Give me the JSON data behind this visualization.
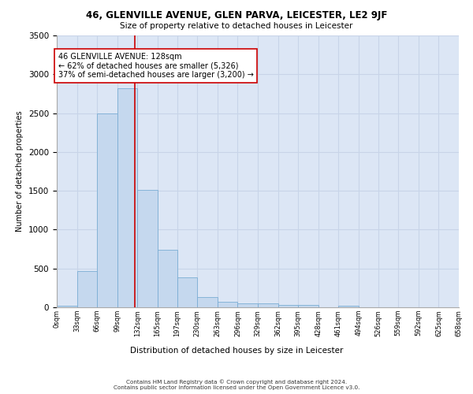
{
  "title": "46, GLENVILLE AVENUE, GLEN PARVA, LEICESTER, LE2 9JF",
  "subtitle": "Size of property relative to detached houses in Leicester",
  "xlabel": "Distribution of detached houses by size in Leicester",
  "ylabel": "Number of detached properties",
  "bar_color": "#c5d8ee",
  "bar_edge_color": "#7aadd4",
  "grid_color": "#c8d4e8",
  "background_color": "#dce6f5",
  "vline_x": 128,
  "vline_color": "#cc0000",
  "annotation_text": "46 GLENVILLE AVENUE: 128sqm\n← 62% of detached houses are smaller (5,326)\n37% of semi-detached houses are larger (3,200) →",
  "annotation_box_color": "#ffffff",
  "annotation_box_edge": "#cc0000",
  "footer_line1": "Contains HM Land Registry data © Crown copyright and database right 2024.",
  "footer_line2": "Contains public sector information licensed under the Open Government Licence v3.0.",
  "bin_edges": [
    0,
    33,
    66,
    99,
    132,
    165,
    197,
    230,
    263,
    296,
    329,
    362,
    395,
    428,
    461,
    494,
    526,
    559,
    592,
    625,
    658
  ],
  "bar_values": [
    25,
    470,
    2500,
    2820,
    1510,
    740,
    390,
    135,
    70,
    55,
    55,
    30,
    30,
    0,
    25,
    0,
    0,
    0,
    0,
    0
  ],
  "ylim": [
    0,
    3500
  ],
  "xlim": [
    0,
    658
  ],
  "tick_labels": [
    "0sqm",
    "33sqm",
    "66sqm",
    "99sqm",
    "132sqm",
    "165sqm",
    "197sqm",
    "230sqm",
    "263sqm",
    "296sqm",
    "329sqm",
    "362sqm",
    "395sqm",
    "428sqm",
    "461sqm",
    "494sqm",
    "526sqm",
    "559sqm",
    "592sqm",
    "625sqm",
    "658sqm"
  ]
}
